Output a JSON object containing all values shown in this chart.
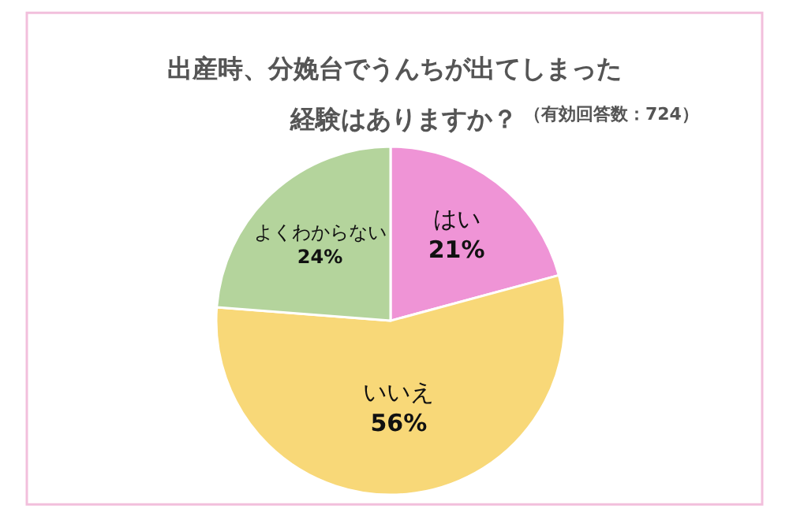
{
  "chart_data": {
    "type": "pie",
    "title": "出産時、分娩台でうんちが出てしまった経験はありますか？",
    "subtitle": "（有効回答数：724）",
    "categories": [
      "はい",
      "いいえ",
      "よくわからない"
    ],
    "values": [
      21,
      56,
      24
    ],
    "value_labels": [
      "21%",
      "56%",
      "24%"
    ],
    "colors": [
      "#ef94d6",
      "#f8d878",
      "#b4d49c"
    ],
    "legend": false
  }
}
